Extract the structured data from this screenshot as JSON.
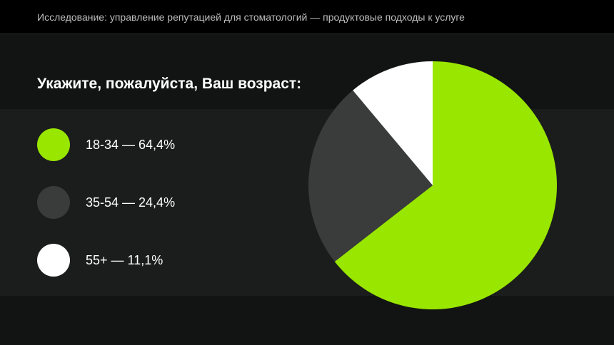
{
  "header": {
    "title": "Исследование: управление репутацией для стоматологий — продуктовые подходы к услуге"
  },
  "question": "Укажите, пожалуйста, Ваш возраст:",
  "colors": {
    "background": "#121313",
    "header_bg": "#000000",
    "band": "#1b1c1c",
    "accent": "#99e600"
  },
  "chart_data": {
    "type": "pie",
    "slices": [
      {
        "label": "18-34 — 64,4%",
        "category": "18-34",
        "value": 64.4,
        "color": "#99e600"
      },
      {
        "label": "35-54 — 24,4%",
        "category": "35-54",
        "value": 24.4,
        "color": "#3a3b3b"
      },
      {
        "label": "55+ — 11,1%",
        "category": "55+",
        "value": 11.1,
        "color": "#ffffff"
      }
    ],
    "start_angle": "12 o'clock",
    "direction": "clockwise",
    "legend": "left"
  }
}
